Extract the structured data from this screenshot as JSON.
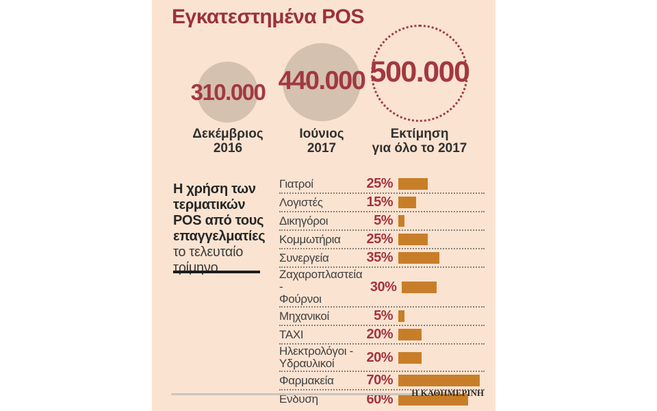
{
  "title": "Εγκατεστημένα POS",
  "colors": {
    "background": "#fae3d1",
    "accent_red": "#9b3139",
    "bar_orange": "#c87e28",
    "circle_tan": "#d4c1af"
  },
  "circles": [
    {
      "value_label": "310.000",
      "period": "Δεκέμβριος\n2016"
    },
    {
      "value_label": "440.000",
      "period": "Ιούνιος\n2017"
    },
    {
      "value_label": "500.000",
      "period": "Εκτίμηση\nγια όλο το 2017"
    }
  ],
  "note": {
    "bold": "Η χρήση των\nτερματικών\nPOS από τους\nεπαγγελματίες",
    "regular": "το τελευταίο\nτρίμηνο"
  },
  "bar_chart": {
    "rows": [
      {
        "label": "Γιατροί",
        "pct_label": "25%",
        "value": 25
      },
      {
        "label": "Λογιστές",
        "pct_label": "15%",
        "value": 15
      },
      {
        "label": "Δικηγόροι",
        "pct_label": "5%",
        "value": 5
      },
      {
        "label": "Κομμωτήρια",
        "pct_label": "25%",
        "value": 25
      },
      {
        "label": "Συνεργεία",
        "pct_label": "35%",
        "value": 35
      },
      {
        "label": "Ζαχαροπλαστεία -\nΦούρνοι",
        "pct_label": "30%",
        "value": 30
      },
      {
        "label": "Μηχανικοί",
        "pct_label": "5%",
        "value": 5
      },
      {
        "label": "TAXI",
        "pct_label": "20%",
        "value": 20
      },
      {
        "label": "Ηλεκτρολόγοι -\nΥδραυλικοί",
        "pct_label": "20%",
        "value": 20
      },
      {
        "label": "Φαρμακεία",
        "pct_label": "70%",
        "value": 70
      },
      {
        "label": "Ενδυση",
        "pct_label": "60%",
        "value": 60
      }
    ]
  },
  "footer": {
    "source": "Η ΚΑΘΗΜΕΡΙΝΗ"
  },
  "chart_data": [
    {
      "type": "bubble",
      "title": "Εγκατεστημένα POS",
      "points": [
        {
          "label": "Δεκέμβριος 2016",
          "value": 310000
        },
        {
          "label": "Ιούνιος 2017",
          "value": 440000
        },
        {
          "label": "Εκτίμηση για όλο το 2017",
          "value": 500000,
          "style": "dotted-estimate"
        }
      ]
    },
    {
      "type": "bar",
      "orientation": "horizontal",
      "title": "Η χρήση των τερματικών POS από τους επαγγελματίες το τελευταίο τρίμηνο",
      "categories": [
        "Γιατροί",
        "Λογιστές",
        "Δικηγόροι",
        "Κομμωτήρια",
        "Συνεργεία",
        "Ζαχαροπλαστεία - Φούρνοι",
        "Μηχανικοί",
        "TAXI",
        "Ηλεκτρολόγοι - Υδραυλικοί",
        "Φαρμακεία",
        "Ενδυση"
      ],
      "values": [
        25,
        15,
        5,
        25,
        35,
        30,
        5,
        20,
        20,
        70,
        60
      ],
      "unit": "%",
      "xlim": [
        0,
        100
      ],
      "grid": false,
      "legend": false
    }
  ]
}
